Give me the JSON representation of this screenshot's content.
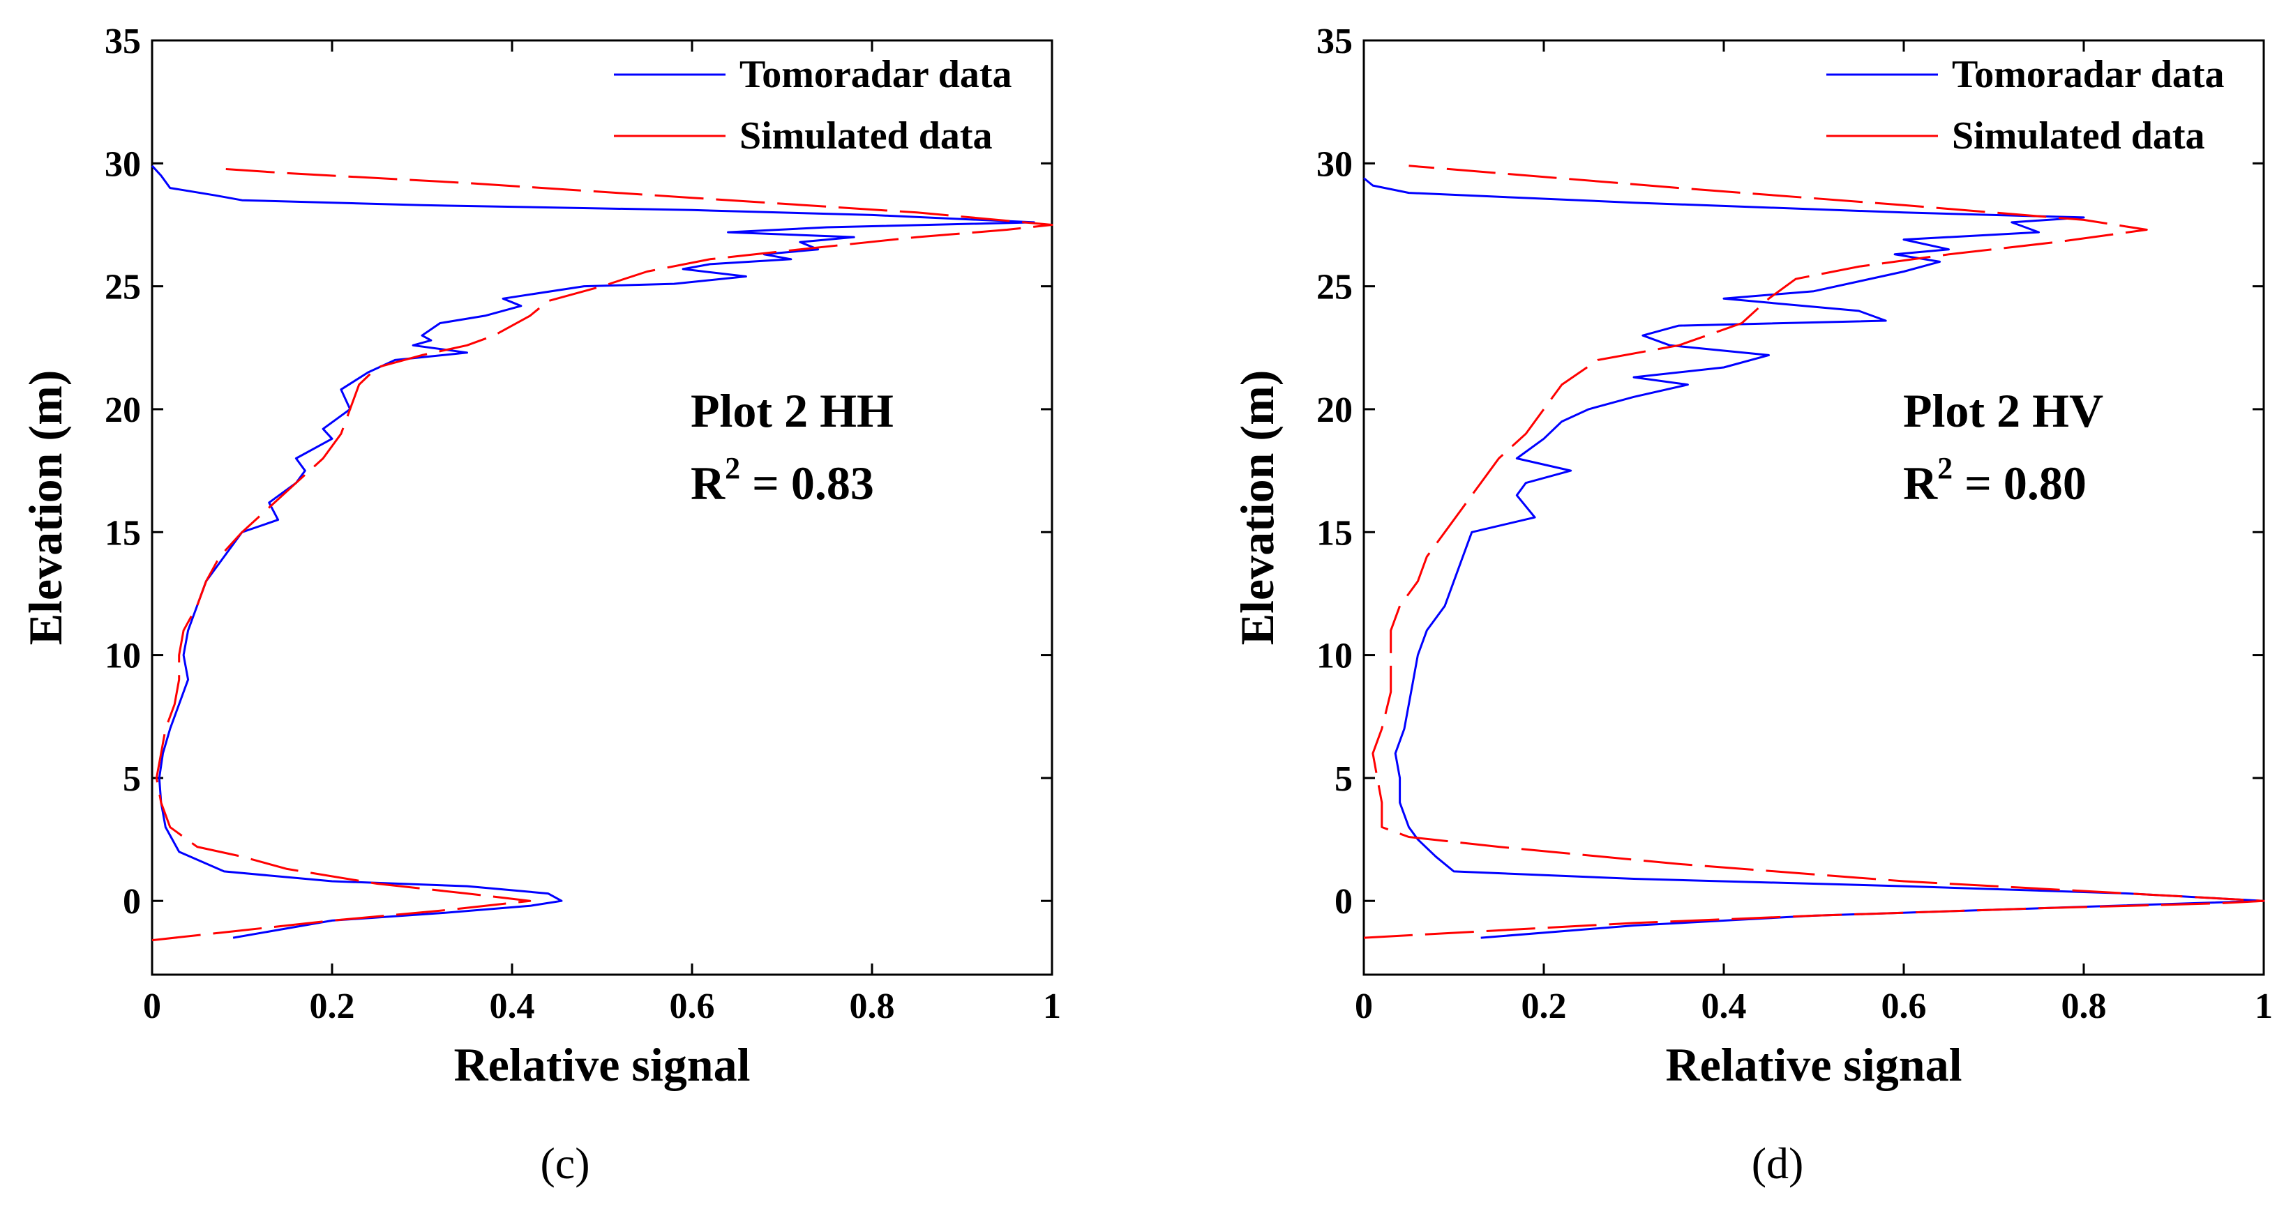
{
  "chart_data": [
    {
      "type": "line",
      "panel_label": "(c)",
      "xlabel": "Relative signal",
      "ylabel": "Elevation (m)",
      "xlim": [
        0,
        1
      ],
      "ylim": [
        -3,
        35
      ],
      "xticks": [
        0,
        0.2,
        0.4,
        0.6,
        0.8,
        1
      ],
      "xtick_labels": [
        "0",
        "0.2",
        "0.4",
        "0.6",
        "0.8",
        "1"
      ],
      "yticks": [
        0,
        5,
        10,
        15,
        20,
        25,
        30,
        35
      ],
      "ytick_labels": [
        "0",
        "5",
        "10",
        "15",
        "20",
        "25",
        "30",
        "35"
      ],
      "annotation": {
        "line1": "Plot 2 HH",
        "r2_label": "R",
        "r2_sup": "2",
        "r2_value": " = 0.83"
      },
      "legend_position": "top-right",
      "series": [
        {
          "name": "Tomoradar data",
          "color": "#0000ff",
          "style": "solid",
          "points": [
            [
              0.09,
              -1.5
            ],
            [
              0.2,
              -0.8
            ],
            [
              0.32,
              -0.5
            ],
            [
              0.42,
              -0.2
            ],
            [
              0.455,
              0.0
            ],
            [
              0.44,
              0.3
            ],
            [
              0.35,
              0.6
            ],
            [
              0.2,
              0.8
            ],
            [
              0.08,
              1.2
            ],
            [
              0.03,
              2.0
            ],
            [
              0.015,
              3.0
            ],
            [
              0.01,
              4.0
            ],
            [
              0.008,
              5.0
            ],
            [
              0.012,
              6.0
            ],
            [
              0.02,
              7.0
            ],
            [
              0.03,
              8.0
            ],
            [
              0.04,
              9.0
            ],
            [
              0.035,
              10.0
            ],
            [
              0.04,
              11.0
            ],
            [
              0.05,
              12.0
            ],
            [
              0.06,
              13.0
            ],
            [
              0.08,
              14.0
            ],
            [
              0.1,
              15.0
            ],
            [
              0.14,
              15.5
            ],
            [
              0.13,
              16.2
            ],
            [
              0.16,
              17.0
            ],
            [
              0.17,
              17.5
            ],
            [
              0.16,
              18.0
            ],
            [
              0.2,
              18.8
            ],
            [
              0.19,
              19.2
            ],
            [
              0.22,
              20.0
            ],
            [
              0.21,
              20.8
            ],
            [
              0.24,
              21.5
            ],
            [
              0.27,
              22.0
            ],
            [
              0.35,
              22.3
            ],
            [
              0.29,
              22.6
            ],
            [
              0.31,
              22.8
            ],
            [
              0.3,
              23.0
            ],
            [
              0.32,
              23.5
            ],
            [
              0.37,
              23.8
            ],
            [
              0.41,
              24.2
            ],
            [
              0.39,
              24.5
            ],
            [
              0.48,
              25.0
            ],
            [
              0.58,
              25.1
            ],
            [
              0.66,
              25.4
            ],
            [
              0.59,
              25.7
            ],
            [
              0.62,
              25.9
            ],
            [
              0.71,
              26.1
            ],
            [
              0.68,
              26.3
            ],
            [
              0.74,
              26.5
            ],
            [
              0.72,
              26.8
            ],
            [
              0.78,
              27.0
            ],
            [
              0.64,
              27.2
            ],
            [
              0.75,
              27.4
            ],
            [
              0.98,
              27.6
            ],
            [
              0.8,
              27.9
            ],
            [
              0.6,
              28.1
            ],
            [
              0.3,
              28.3
            ],
            [
              0.1,
              28.5
            ],
            [
              0.07,
              28.7
            ],
            [
              0.02,
              29.0
            ],
            [
              0.01,
              29.5
            ],
            [
              0.0,
              29.9
            ]
          ]
        },
        {
          "name": "Simulated data",
          "color": "#ff0000",
          "style": "dashed",
          "points": [
            [
              0.0,
              -1.6
            ],
            [
              0.1,
              -1.2
            ],
            [
              0.2,
              -0.8
            ],
            [
              0.32,
              -0.4
            ],
            [
              0.42,
              0.0
            ],
            [
              0.35,
              0.3
            ],
            [
              0.25,
              0.7
            ],
            [
              0.15,
              1.3
            ],
            [
              0.1,
              1.8
            ],
            [
              0.05,
              2.2
            ],
            [
              0.02,
              3.0
            ],
            [
              0.01,
              4.0
            ],
            [
              0.005,
              5.0
            ],
            [
              0.01,
              6.0
            ],
            [
              0.015,
              7.0
            ],
            [
              0.025,
              8.0
            ],
            [
              0.03,
              9.0
            ],
            [
              0.03,
              10.0
            ],
            [
              0.035,
              11.0
            ],
            [
              0.05,
              12.0
            ],
            [
              0.06,
              13.0
            ],
            [
              0.075,
              14.0
            ],
            [
              0.1,
              15.0
            ],
            [
              0.13,
              16.0
            ],
            [
              0.16,
              17.0
            ],
            [
              0.19,
              18.0
            ],
            [
              0.21,
              19.0
            ],
            [
              0.22,
              20.0
            ],
            [
              0.23,
              21.0
            ],
            [
              0.25,
              21.7
            ],
            [
              0.3,
              22.2
            ],
            [
              0.35,
              22.6
            ],
            [
              0.38,
              23.0
            ],
            [
              0.42,
              23.8
            ],
            [
              0.44,
              24.4
            ],
            [
              0.5,
              25.0
            ],
            [
              0.55,
              25.6
            ],
            [
              0.62,
              26.1
            ],
            [
              0.72,
              26.5
            ],
            [
              0.85,
              27.0
            ],
            [
              0.95,
              27.3
            ],
            [
              1.0,
              27.5
            ],
            [
              0.85,
              28.0
            ],
            [
              0.6,
              28.6
            ],
            [
              0.35,
              29.2
            ],
            [
              0.15,
              29.6
            ],
            [
              0.07,
              29.8
            ]
          ]
        }
      ]
    },
    {
      "type": "line",
      "panel_label": "(d)",
      "xlabel": "Relative signal",
      "ylabel": "Elevation (m)",
      "xlim": [
        0,
        1
      ],
      "ylim": [
        -3,
        35
      ],
      "xticks": [
        0,
        0.2,
        0.4,
        0.6,
        0.8,
        1
      ],
      "xtick_labels": [
        "0",
        "0.2",
        "0.4",
        "0.6",
        "0.8",
        "1"
      ],
      "yticks": [
        0,
        5,
        10,
        15,
        20,
        25,
        30,
        35
      ],
      "ytick_labels": [
        "0",
        "5",
        "10",
        "15",
        "20",
        "25",
        "30",
        "35"
      ],
      "annotation": {
        "line1": "Plot 2 HV",
        "r2_label": "R",
        "r2_sup": "2",
        "r2_value": " = 0.80"
      },
      "legend_position": "top-right",
      "series": [
        {
          "name": "Tomoradar data",
          "color": "#0000ff",
          "style": "solid",
          "points": [
            [
              0.13,
              -1.5
            ],
            [
              0.3,
              -1.0
            ],
            [
              0.5,
              -0.6
            ],
            [
              0.75,
              -0.3
            ],
            [
              1.0,
              0.0
            ],
            [
              0.85,
              0.3
            ],
            [
              0.6,
              0.6
            ],
            [
              0.3,
              0.9
            ],
            [
              0.1,
              1.2
            ],
            [
              0.08,
              1.8
            ],
            [
              0.06,
              2.5
            ],
            [
              0.05,
              3.0
            ],
            [
              0.04,
              4.0
            ],
            [
              0.04,
              5.0
            ],
            [
              0.035,
              6.0
            ],
            [
              0.045,
              7.0
            ],
            [
              0.05,
              8.0
            ],
            [
              0.055,
              9.0
            ],
            [
              0.06,
              10.0
            ],
            [
              0.07,
              11.0
            ],
            [
              0.09,
              12.0
            ],
            [
              0.1,
              13.0
            ],
            [
              0.11,
              14.0
            ],
            [
              0.12,
              15.0
            ],
            [
              0.19,
              15.6
            ],
            [
              0.17,
              16.5
            ],
            [
              0.18,
              17.0
            ],
            [
              0.23,
              17.5
            ],
            [
              0.17,
              18.0
            ],
            [
              0.2,
              18.8
            ],
            [
              0.22,
              19.5
            ],
            [
              0.25,
              20.0
            ],
            [
              0.3,
              20.5
            ],
            [
              0.36,
              21.0
            ],
            [
              0.3,
              21.3
            ],
            [
              0.4,
              21.7
            ],
            [
              0.45,
              22.2
            ],
            [
              0.34,
              22.6
            ],
            [
              0.31,
              23.0
            ],
            [
              0.35,
              23.4
            ],
            [
              0.58,
              23.6
            ],
            [
              0.55,
              24.0
            ],
            [
              0.4,
              24.5
            ],
            [
              0.5,
              24.8
            ],
            [
              0.55,
              25.2
            ],
            [
              0.6,
              25.6
            ],
            [
              0.64,
              26.0
            ],
            [
              0.59,
              26.3
            ],
            [
              0.65,
              26.5
            ],
            [
              0.6,
              26.9
            ],
            [
              0.75,
              27.2
            ],
            [
              0.72,
              27.6
            ],
            [
              0.8,
              27.8
            ],
            [
              0.6,
              28.0
            ],
            [
              0.3,
              28.4
            ],
            [
              0.05,
              28.8
            ],
            [
              0.01,
              29.1
            ],
            [
              0.0,
              29.4
            ]
          ]
        },
        {
          "name": "Simulated data",
          "color": "#ff0000",
          "style": "dashed",
          "points": [
            [
              0.0,
              -1.5
            ],
            [
              0.15,
              -1.2
            ],
            [
              0.3,
              -0.9
            ],
            [
              0.5,
              -0.6
            ],
            [
              0.75,
              -0.3
            ],
            [
              0.95,
              -0.1
            ],
            [
              1.0,
              0.0
            ],
            [
              0.85,
              0.3
            ],
            [
              0.6,
              0.8
            ],
            [
              0.35,
              1.5
            ],
            [
              0.15,
              2.2
            ],
            [
              0.05,
              2.6
            ],
            [
              0.02,
              3.0
            ],
            [
              0.02,
              4.0
            ],
            [
              0.015,
              5.0
            ],
            [
              0.01,
              6.0
            ],
            [
              0.02,
              7.0
            ],
            [
              0.03,
              8.5
            ],
            [
              0.03,
              10.0
            ],
            [
              0.03,
              11.0
            ],
            [
              0.04,
              12.0
            ],
            [
              0.06,
              13.0
            ],
            [
              0.07,
              14.0
            ],
            [
              0.09,
              15.0
            ],
            [
              0.11,
              16.0
            ],
            [
              0.13,
              17.0
            ],
            [
              0.15,
              18.0
            ],
            [
              0.18,
              19.0
            ],
            [
              0.2,
              20.0
            ],
            [
              0.22,
              21.0
            ],
            [
              0.26,
              22.0
            ],
            [
              0.35,
              22.6
            ],
            [
              0.42,
              23.5
            ],
            [
              0.45,
              24.5
            ],
            [
              0.48,
              25.3
            ],
            [
              0.55,
              25.8
            ],
            [
              0.65,
              26.3
            ],
            [
              0.77,
              26.8
            ],
            [
              0.87,
              27.3
            ],
            [
              0.8,
              27.7
            ],
            [
              0.6,
              28.3
            ],
            [
              0.35,
              29.0
            ],
            [
              0.15,
              29.6
            ],
            [
              0.05,
              29.9
            ]
          ]
        }
      ]
    }
  ]
}
